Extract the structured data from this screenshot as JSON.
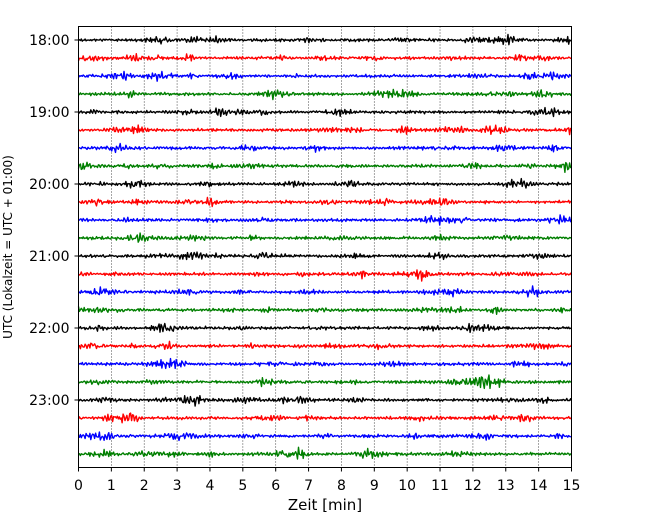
{
  "chart_data": {
    "type": "line",
    "title": "",
    "xlabel": "Zeit  [min]",
    "ylabel": "UTC (Lokalzeit = UTC + 01:00)",
    "xlim": [
      0,
      15
    ],
    "x_ticks": [
      0,
      1,
      2,
      3,
      4,
      5,
      6,
      7,
      8,
      9,
      10,
      11,
      12,
      13,
      14,
      15
    ],
    "grid": "vertical dotted",
    "y_tick_labels": [
      "18:00",
      "19:00",
      "20:00",
      "21:00",
      "22:00",
      "23:00"
    ],
    "trace_colors": [
      "#000000",
      "#ff0000",
      "#0000ff",
      "#007f00"
    ],
    "trace_minutes": 15,
    "trace_start_times": [
      "18:00",
      "18:15",
      "18:30",
      "18:45",
      "19:00",
      "19:15",
      "19:30",
      "19:45",
      "20:00",
      "20:15",
      "20:30",
      "20:45",
      "21:00",
      "21:15",
      "21:30",
      "21:45",
      "22:00",
      "22:15",
      "22:30",
      "22:45",
      "23:00",
      "23:15",
      "23:30",
      "23:45"
    ]
  }
}
